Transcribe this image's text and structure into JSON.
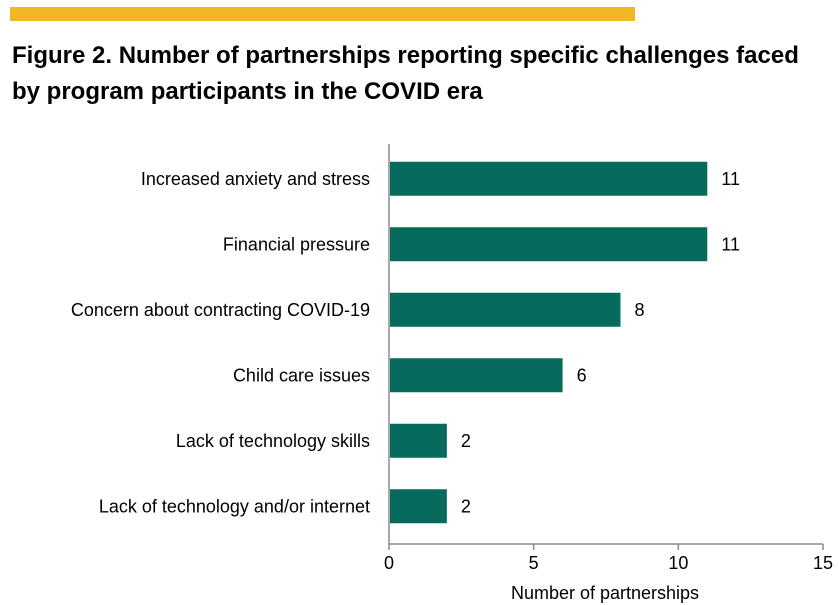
{
  "chart_data": {
    "type": "bar",
    "orientation": "horizontal",
    "title": "Figure 2. Number of partnerships reporting specific challenges faced by program participants in the COVID era",
    "categories": [
      "Increased anxiety and stress",
      "Financial pressure",
      "Concern about contracting COVID-19",
      "Child care issues",
      "Lack of technology skills",
      "Lack of technology and/or internet"
    ],
    "values": [
      11,
      11,
      8,
      6,
      2,
      2
    ],
    "data_labels": [
      "11",
      "11",
      "8",
      "6",
      "2",
      "2"
    ],
    "xlabel": "Number of partnerships",
    "ylabel": "",
    "xlim": [
      0,
      15
    ],
    "x_ticks": [
      0,
      5,
      10,
      15
    ],
    "x_tick_labels": [
      "0",
      "5",
      "10",
      "15"
    ],
    "grid": false,
    "legend": "none",
    "colors": {
      "bar": "#066b5c",
      "accent": "#f0b824",
      "axis": "#8c8c8c"
    }
  }
}
